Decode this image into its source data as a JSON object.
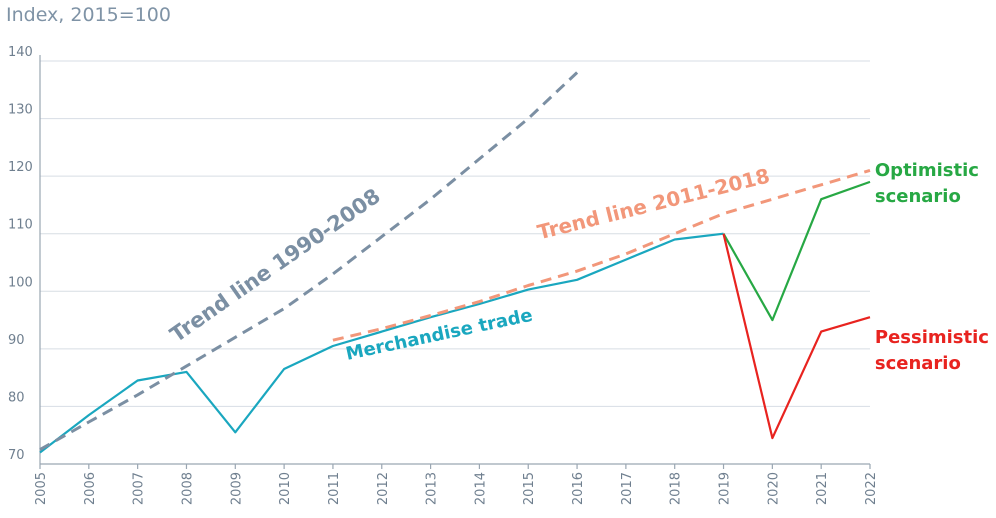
{
  "chart_data": {
    "type": "line",
    "ylabel": "Index, 2015=100",
    "ylim": [
      70,
      140
    ],
    "yticks": [
      70,
      80,
      90,
      100,
      110,
      120,
      130,
      140
    ],
    "x": [
      2005,
      2006,
      2007,
      2008,
      2009,
      2010,
      2011,
      2012,
      2013,
      2014,
      2015,
      2016,
      2017,
      2018,
      2019,
      2020,
      2021,
      2022
    ],
    "grid": true,
    "series": [
      {
        "name": "Merchandise trade",
        "color": "#1aa7bf",
        "style": "solid",
        "points": [
          [
            2005,
            72
          ],
          [
            2006,
            78.5
          ],
          [
            2007,
            84.5
          ],
          [
            2008,
            86
          ],
          [
            2009,
            75.5
          ],
          [
            2010,
            86.5
          ],
          [
            2011,
            90.5
          ],
          [
            2012,
            93
          ],
          [
            2013,
            95.5
          ],
          [
            2014,
            97.8
          ],
          [
            2015,
            100.3
          ],
          [
            2016,
            102
          ],
          [
            2017,
            105.5
          ],
          [
            2018,
            109
          ],
          [
            2019,
            110
          ]
        ]
      },
      {
        "name": "Trend line 1990-2008",
        "color": "#7b8fa3",
        "style": "dashed",
        "points": [
          [
            2005,
            72.5
          ],
          [
            2006,
            77.3
          ],
          [
            2007,
            82
          ],
          [
            2008,
            87
          ],
          [
            2009,
            92
          ],
          [
            2010,
            97
          ],
          [
            2011,
            103
          ],
          [
            2012,
            109.5
          ],
          [
            2013,
            116
          ],
          [
            2014,
            123
          ],
          [
            2015,
            130
          ],
          [
            2016,
            138
          ]
        ]
      },
      {
        "name": "Trend line 2011-2018",
        "color": "#f2977a",
        "style": "dashed",
        "points": [
          [
            2011,
            91.5
          ],
          [
            2012,
            93.5
          ],
          [
            2013,
            95.8
          ],
          [
            2014,
            98.2
          ],
          [
            2015,
            101
          ],
          [
            2016,
            103.5
          ],
          [
            2017,
            106.5
          ],
          [
            2018,
            110
          ],
          [
            2019,
            113.5
          ],
          [
            2020,
            116
          ],
          [
            2021,
            118.5
          ],
          [
            2022,
            121
          ]
        ]
      },
      {
        "name": "Optimistic scenario",
        "color": "#27a844",
        "style": "solid",
        "points": [
          [
            2019,
            110
          ],
          [
            2020,
            95
          ],
          [
            2021,
            116
          ],
          [
            2022,
            119
          ]
        ]
      },
      {
        "name": "Pessimistic scenario",
        "color": "#e8231f",
        "style": "solid",
        "points": [
          [
            2019,
            110
          ],
          [
            2020,
            74.5
          ],
          [
            2021,
            93
          ],
          [
            2022,
            95.5
          ]
        ]
      }
    ],
    "annotations": [
      {
        "text": "Trend line 1990-2008",
        "color": "#7b8fa3",
        "x": 2009.9,
        "y": 103.5,
        "rotate": -35,
        "size": 21
      },
      {
        "text": "Trend line 2011-2018",
        "color": "#f2977a",
        "x": 2017.6,
        "y": 114,
        "rotate": -14,
        "size": 20
      },
      {
        "text": "Merchandise trade",
        "color": "#1aa7bf",
        "x": 2013.2,
        "y": 91.5,
        "rotate": -12,
        "size": 18
      },
      {
        "text": "Optimistic",
        "color": "#27a844",
        "x": 2022.1,
        "y": 120,
        "rotate": 0,
        "size": 18
      },
      {
        "text": "scenario",
        "color": "#27a844",
        "x": 2022.1,
        "y": 115.5,
        "rotate": 0,
        "size": 18
      },
      {
        "text": "Pessimistic",
        "color": "#e8231f",
        "x": 2022.1,
        "y": 91,
        "rotate": 0,
        "size": 18
      },
      {
        "text": "scenario",
        "color": "#e8231f",
        "x": 2022.1,
        "y": 86.5,
        "rotate": 0,
        "size": 18
      }
    ]
  }
}
